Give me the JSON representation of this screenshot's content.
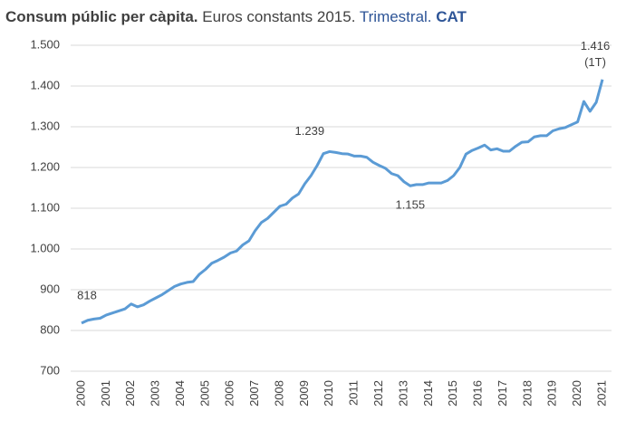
{
  "chart_data": {
    "type": "line",
    "title": [
      "Consum públic per càpita.",
      "Euros constants 2015.",
      "Trimestral.",
      "CAT"
    ],
    "categories": [
      "2000",
      null,
      null,
      null,
      "2001",
      null,
      null,
      null,
      "2002",
      null,
      null,
      null,
      "2003",
      null,
      null,
      null,
      "2004",
      null,
      null,
      null,
      "2005",
      null,
      null,
      null,
      "2006",
      null,
      null,
      null,
      "2007",
      null,
      null,
      null,
      "2008",
      null,
      null,
      null,
      "2009",
      null,
      null,
      null,
      "2010",
      null,
      null,
      null,
      "2011",
      null,
      null,
      null,
      "2012",
      null,
      null,
      null,
      "2013",
      null,
      null,
      null,
      "2014",
      null,
      null,
      null,
      "2015",
      null,
      null,
      null,
      "2016",
      null,
      null,
      null,
      "2017",
      null,
      null,
      null,
      "2018",
      null,
      null,
      null,
      "2019",
      null,
      null,
      null,
      "2020",
      null,
      null,
      null,
      "2021"
    ],
    "series": [
      {
        "color": "#5b9bd5",
        "values": [
          818,
          825,
          828,
          830,
          838,
          843,
          848,
          853,
          865,
          858,
          863,
          872,
          880,
          888,
          898,
          908,
          914,
          918,
          920,
          938,
          950,
          965,
          972,
          980,
          990,
          995,
          1010,
          1020,
          1045,
          1065,
          1075,
          1090,
          1105,
          1110,
          1125,
          1135,
          1160,
          1180,
          1205,
          1234,
          1239,
          1237,
          1234,
          1233,
          1228,
          1228,
          1225,
          1213,
          1205,
          1198,
          1185,
          1180,
          1165,
          1155,
          1158,
          1158,
          1162,
          1162,
          1162,
          1168,
          1180,
          1200,
          1233,
          1242,
          1248,
          1255,
          1243,
          1246,
          1240,
          1240,
          1252,
          1262,
          1263,
          1275,
          1278,
          1278,
          1290,
          1295,
          1298,
          1305,
          1312,
          1362,
          1338,
          1360,
          1416
        ],
        "value_labels": [
          "818",
          null,
          null,
          null,
          null,
          null,
          null,
          null,
          null,
          null,
          null,
          null,
          null,
          null,
          null,
          null,
          null,
          null,
          null,
          null,
          null,
          null,
          null,
          null,
          null,
          null,
          null,
          null,
          null,
          null,
          null,
          null,
          null,
          null,
          null,
          null,
          null,
          null,
          null,
          null,
          "1.239",
          null,
          null,
          null,
          null,
          null,
          null,
          null,
          null,
          null,
          null,
          null,
          null,
          "1.155",
          null,
          null,
          null,
          null,
          null,
          null,
          null,
          null,
          null,
          null,
          null,
          null,
          null,
          null,
          null,
          null,
          null,
          null,
          null,
          null,
          null,
          null,
          null,
          null,
          null,
          null,
          null,
          null,
          null,
          null,
          "1.416"
        ]
      }
    ],
    "annotations": [
      "(1T)"
    ],
    "ylim": [
      700,
      1500
    ],
    "yticks": [
      {
        "value": 700,
        "label": "700"
      },
      {
        "value": 800,
        "label": "800"
      },
      {
        "value": 900,
        "label": "900"
      },
      {
        "value": 1000,
        "label": "1.000"
      },
      {
        "value": 1100,
        "label": "1.100"
      },
      {
        "value": 1200,
        "label": "1.200"
      },
      {
        "value": 1300,
        "label": "1.300"
      },
      {
        "value": 1400,
        "label": "1.400"
      },
      {
        "value": 1500,
        "label": "1.500"
      }
    ],
    "grid": true
  }
}
